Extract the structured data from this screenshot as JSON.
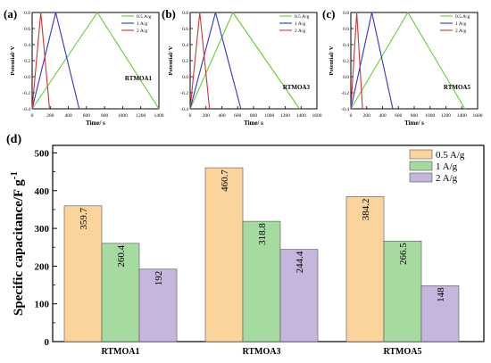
{
  "panels": [
    {
      "letter": "(a)",
      "sample": "RTMOA1",
      "xlabel": "Time/ s",
      "ylabel": "Potential/ V",
      "xticks": [
        "0",
        "200",
        "400",
        "600",
        "800",
        "1000",
        "1200",
        "1400"
      ],
      "yticks": [
        "-0.4",
        "-0.2",
        "0.0",
        "0.2",
        "0.4",
        "0.6",
        "0.8"
      ]
    },
    {
      "letter": "(b)",
      "sample": "RTMOA3",
      "xlabel": "Time/ s",
      "ylabel": "Potential/ V",
      "xticks": [
        "0",
        "200",
        "400",
        "600",
        "800",
        "1000",
        "1200",
        "1400",
        "1600"
      ],
      "yticks": [
        "-0.4",
        "-0.2",
        "0.0",
        "0.2",
        "0.4",
        "0.6",
        "0.8"
      ]
    },
    {
      "letter": "(c)",
      "sample": "RTMOA5",
      "xlabel": "Time/ s",
      "ylabel": "Potential/ V",
      "xticks": [
        "0",
        "200",
        "400",
        "600",
        "800",
        "1000",
        "1200",
        "1400",
        "1600"
      ],
      "yticks": [
        "-0.4",
        "-0.2",
        "0.0",
        "0.2",
        "0.4",
        "0.6",
        "0.8"
      ]
    }
  ],
  "bar_panel": {
    "letter": "(d)",
    "ylabel": "Specific capacitance/F g",
    "ylabel_sup": "-1",
    "yticks": [
      "0",
      "100",
      "200",
      "300",
      "400",
      "500"
    ]
  },
  "chart_data": [
    {
      "type": "line",
      "panel": "(a)",
      "annotation": "RTMOA1",
      "xlabel": "Time/ s",
      "ylabel": "Potential/ V",
      "xlim": [
        0,
        1400
      ],
      "ylim": [
        -0.4,
        0.8
      ],
      "legend": "top-right",
      "series": [
        {
          "name": "0.5 A/g",
          "color": "#66cc33",
          "x": [
            0,
            720,
            1440
          ],
          "y": [
            -0.4,
            0.8,
            -0.4
          ]
        },
        {
          "name": "1 A/g",
          "color": "#3333cc",
          "x": [
            0,
            260,
            520
          ],
          "y": [
            -0.4,
            0.8,
            -0.4
          ]
        },
        {
          "name": "2 A/g",
          "color": "#cc3333",
          "x": [
            0,
            96,
            192
          ],
          "y": [
            -0.4,
            0.8,
            -0.4
          ]
        }
      ]
    },
    {
      "type": "line",
      "panel": "(b)",
      "annotation": "RTMOA3",
      "xlabel": "Time/ s",
      "ylabel": "Potential/ V",
      "xlim": [
        0,
        1600
      ],
      "ylim": [
        -0.4,
        0.8
      ],
      "legend": "top-right",
      "series": [
        {
          "name": "0.5 A/g",
          "color": "#66cc33",
          "x": [
            0,
            540,
            1380
          ],
          "y": [
            -0.4,
            0.8,
            -0.4
          ]
        },
        {
          "name": "1 A/g",
          "color": "#3333cc",
          "x": [
            0,
            320,
            640
          ],
          "y": [
            -0.4,
            0.8,
            -0.4
          ]
        },
        {
          "name": "2 A/g",
          "color": "#cc3333",
          "x": [
            0,
            122,
            244
          ],
          "y": [
            -0.4,
            0.8,
            -0.4
          ]
        }
      ]
    },
    {
      "type": "line",
      "panel": "(c)",
      "annotation": "RTMOA5",
      "xlabel": "Time/ s",
      "ylabel": "Potential/ V",
      "xlim": [
        0,
        1600
      ],
      "ylim": [
        -0.4,
        0.8
      ],
      "legend": "top-right",
      "series": [
        {
          "name": "0.5 A/g",
          "color": "#66cc33",
          "x": [
            0,
            720,
            1440
          ],
          "y": [
            -0.4,
            0.8,
            -0.4
          ]
        },
        {
          "name": "1 A/g",
          "color": "#3333cc",
          "x": [
            0,
            265,
            530
          ],
          "y": [
            -0.4,
            0.8,
            -0.4
          ]
        },
        {
          "name": "2 A/g",
          "color": "#cc3333",
          "x": [
            0,
            74,
            148
          ],
          "y": [
            -0.4,
            0.8,
            -0.4
          ]
        }
      ]
    },
    {
      "type": "bar",
      "panel": "(d)",
      "categories": [
        "RTMOA1",
        "RTMOA3",
        "RTMOA5"
      ],
      "ylabel": "Specific capacitance/F g-1",
      "ylim": [
        0,
        520
      ],
      "legend": "top-right",
      "series": [
        {
          "name": "0.5 A/g",
          "color": "#fbd49b",
          "values": [
            359.7,
            460.7,
            384.2
          ],
          "labels": [
            "359.7",
            "460.7",
            "384.2"
          ]
        },
        {
          "name": "1 A/g",
          "color": "#a6dba0",
          "values": [
            260.4,
            318.8,
            266.5
          ],
          "labels": [
            "260.4",
            "318.8",
            "266.5"
          ]
        },
        {
          "name": "2 A/g",
          "color": "#c6b5dc",
          "values": [
            192,
            244.4,
            148
          ],
          "labels": [
            "192",
            "244.4",
            "148"
          ]
        }
      ]
    }
  ]
}
